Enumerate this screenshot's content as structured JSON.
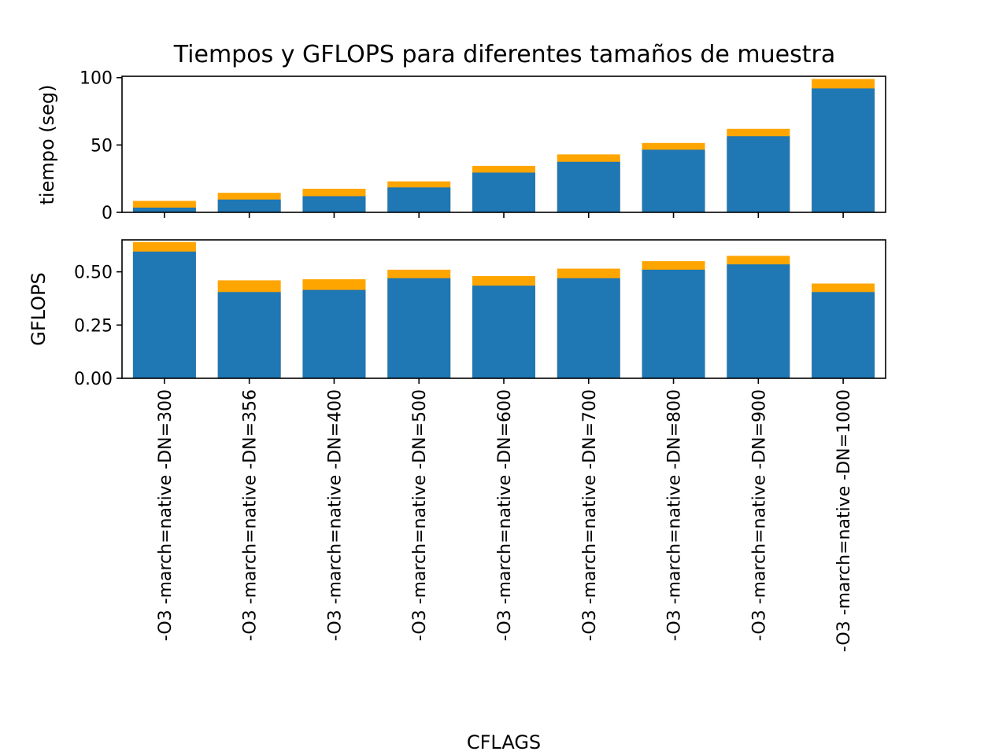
{
  "chart_data": {
    "type": "bar",
    "title": "Tiempos y GFLOPS para diferentes tamaños de muestra",
    "xlabel": "CFLAGS",
    "categories": [
      "-O3 -march=native -DN=300",
      "-O3 -march=native -DN=356",
      "-O3 -march=native -DN=400",
      "-O3 -march=native -DN=500",
      "-O3 -march=native -DN=600",
      "-O3 -march=native -DN=700",
      "-O3 -march=native -DN=800",
      "-O3 -march=native -DN=900",
      "-O3 -march=native -DN=1000"
    ],
    "panels": [
      {
        "ylabel": "tiempo (seg)",
        "ylim": [
          0,
          101
        ],
        "yticks": [
          0,
          50,
          100
        ],
        "ytick_labels": [
          "0",
          "50",
          "100"
        ],
        "base_color": "#1f77b4",
        "cap_color": "#ffa500",
        "values": [
          3.5,
          9.5,
          12,
          18.5,
          29.5,
          37.5,
          46.5,
          56.5,
          92
        ],
        "tops": [
          8.5,
          14.5,
          17.5,
          23,
          34.5,
          43,
          51.5,
          62,
          99
        ]
      },
      {
        "ylabel": "GFLOPS",
        "ylim": [
          0,
          0.65
        ],
        "yticks": [
          0,
          0.25,
          0.5
        ],
        "ytick_labels": [
          "0.00",
          "0.25",
          "0.50"
        ],
        "base_color": "#1f77b4",
        "cap_color": "#ffa500",
        "values": [
          0.595,
          0.405,
          0.415,
          0.47,
          0.435,
          0.47,
          0.51,
          0.535,
          0.405
        ],
        "tops": [
          0.64,
          0.46,
          0.465,
          0.51,
          0.48,
          0.515,
          0.55,
          0.575,
          0.445
        ]
      }
    ],
    "grid": false,
    "legend": "none"
  }
}
